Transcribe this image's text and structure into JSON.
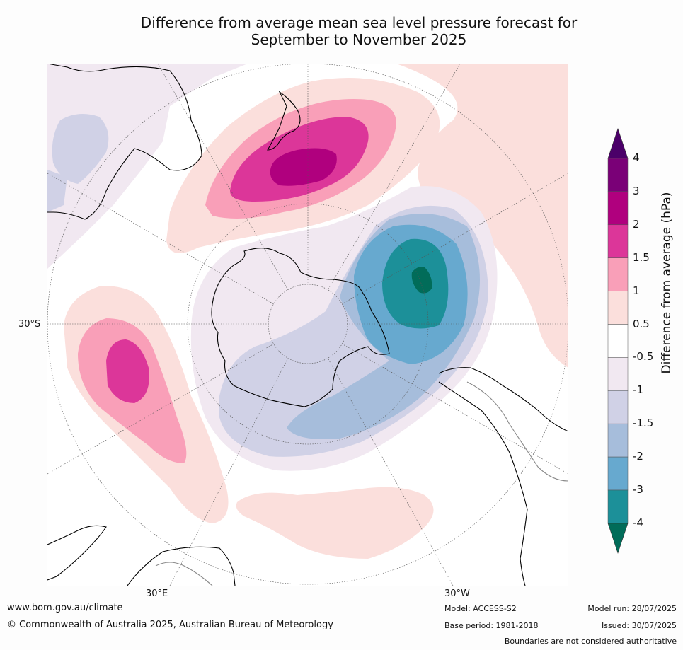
{
  "title_line1": "Difference from average mean sea level pressure forecast for",
  "title_line2": "September to November 2025",
  "map_labels": {
    "lat_30s": "30°S",
    "lon_30e": "30°E",
    "lon_30w": "30°W"
  },
  "colorbar": {
    "title": "Difference from average (hPa)",
    "ticks": [
      "4",
      "3",
      "2",
      "1.5",
      "1",
      "0.5",
      "-0.5",
      "-1",
      "-1.5",
      "-2",
      "-3",
      "-4"
    ],
    "colors": [
      "#4b0069",
      "#7a0077",
      "#b0007e",
      "#dc3699",
      "#f99fb8",
      "#fbdfdc",
      "#ffffff",
      "#f1e8f1",
      "#d0d1e6",
      "#a6bddb",
      "#67a9cf",
      "#1c9099",
      "#016c59"
    ]
  },
  "footer": {
    "website": "www.bom.gov.au/climate",
    "copyright": "© Commonwealth of Australia 2025, Australian Bureau of Meteorology",
    "model": "Model: ACCESS-S2",
    "base_period": "Base period: 1981-2018",
    "model_run": "Model run: 28/07/2025",
    "issued": "Issued: 30/07/2025",
    "disclaimer": "Boundaries are not considered authoritative"
  }
}
